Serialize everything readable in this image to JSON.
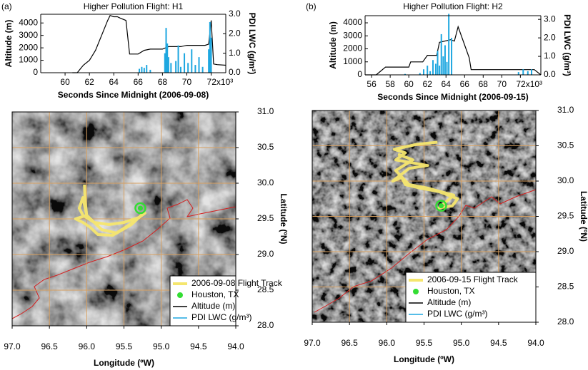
{
  "chart_data": [
    {
      "type": "combo",
      "panel_label": "(a)",
      "title": "Higher Pollution Flight: H1",
      "xlabel": "Seconds Since Midnight (2006-09-08)",
      "ylabel": "Altitude (m)",
      "y2label": "PDI LWC (g/m³)",
      "xlim": [
        58000,
        73200
      ],
      "xticks": [
        {
          "value": 60000,
          "label": "60"
        },
        {
          "value": 62000,
          "label": "62"
        },
        {
          "value": 64000,
          "label": "64"
        },
        {
          "value": 66000,
          "label": "66"
        },
        {
          "value": 68000,
          "label": "68"
        },
        {
          "value": 70000,
          "label": "70"
        },
        {
          "value": 72000,
          "label": "72x10³"
        }
      ],
      "ylim": [
        0,
        4700
      ],
      "yticks": [
        0,
        1000,
        2000,
        3000,
        4000
      ],
      "y2lim": [
        0,
        3.0
      ],
      "y2ticks": [
        {
          "value": 0,
          "label": "0.0"
        },
        {
          "value": 1,
          "label": "1.0"
        },
        {
          "value": 2,
          "label": "2.0"
        },
        {
          "value": 3,
          "label": "3.0"
        }
      ],
      "series": [
        {
          "name": "Altitude (m)",
          "type": "line",
          "color": "#000000",
          "x": [
            60600,
            61000,
            61500,
            62000,
            62500,
            63000,
            63500,
            63700,
            64000,
            64300,
            64500,
            65000,
            65300,
            66000,
            66500,
            67000,
            68000,
            68500,
            69500,
            70000,
            71500,
            71800,
            72000,
            72200,
            72500,
            73200
          ],
          "values": [
            0,
            0,
            600,
            1000,
            1800,
            3000,
            4200,
            4600,
            4500,
            4500,
            4400,
            4200,
            1500,
            1500,
            1800,
            1900,
            1900,
            2100,
            2100,
            2200,
            2200,
            2300,
            4200,
            700,
            650,
            600
          ]
        },
        {
          "name": "PDI LWC (g/m³)",
          "type": "bar",
          "axis": "y2",
          "color": "#1ea7e0",
          "x": [
            61000,
            66100,
            66300,
            66500,
            66700,
            67000,
            68200,
            68300,
            68400,
            68500,
            68700,
            69100,
            69300,
            69500,
            69800,
            70100,
            70400,
            70700,
            71000,
            71300,
            71800,
            71900,
            72000
          ],
          "values": [
            0.02,
            0.2,
            0.3,
            0.25,
            0.4,
            0.15,
            1.0,
            2.3,
            1.5,
            0.8,
            0.5,
            0.6,
            1.4,
            0.3,
            1.0,
            0.5,
            1.2,
            0.4,
            0.8,
            0.3,
            1.2,
            2.6,
            1.8
          ]
        }
      ]
    },
    {
      "type": "combo",
      "panel_label": "(b)",
      "title": "Higher Pollution Flight: H2",
      "xlabel": "Seconds Since Midnight (2006-09-15)",
      "ylabel": "Altitude (m)",
      "y2label": "PDI LWC (g/m³)",
      "xlim": [
        55300,
        74200
      ],
      "xticks": [
        {
          "value": 56000,
          "label": "56"
        },
        {
          "value": 58000,
          "label": "58"
        },
        {
          "value": 60000,
          "label": "60"
        },
        {
          "value": 62000,
          "label": "62"
        },
        {
          "value": 64000,
          "label": "64"
        },
        {
          "value": 66000,
          "label": "66"
        },
        {
          "value": 68000,
          "label": "68"
        },
        {
          "value": 70000,
          "label": "70"
        },
        {
          "value": 72000,
          "label": "72x10³"
        }
      ],
      "ylim": [
        0,
        4550
      ],
      "yticks": [
        0,
        1000,
        2000,
        3000,
        4000
      ],
      "y2lim": [
        0,
        3.2
      ],
      "y2ticks": [
        {
          "value": 0,
          "label": "0.0"
        },
        {
          "value": 1,
          "label": "1.0"
        },
        {
          "value": 2,
          "label": "2.0"
        },
        {
          "value": 3,
          "label": "3.0"
        }
      ],
      "series": [
        {
          "name": "Altitude (m)",
          "type": "line",
          "color": "#000000",
          "x": [
            55300,
            56500,
            57000,
            57500,
            60000,
            60200,
            61500,
            62000,
            63000,
            63300,
            64500,
            64900,
            65300,
            66500,
            66700,
            73500,
            74200
          ],
          "values": [
            0,
            0,
            300,
            600,
            600,
            1000,
            1000,
            1500,
            1500,
            2500,
            2700,
            2600,
            3700,
            1300,
            400,
            400,
            0
          ]
        },
        {
          "name": "PDI LWC (g/m³)",
          "type": "bar",
          "axis": "y2",
          "color": "#1ea7e0",
          "x": [
            59600,
            61200,
            61600,
            62000,
            62300,
            62600,
            62900,
            63100,
            63300,
            63500,
            63700,
            63900,
            64100,
            64300,
            64600,
            71800,
            72300,
            72800,
            73200
          ],
          "values": [
            0.05,
            0.1,
            0.3,
            0.5,
            0.2,
            0.8,
            0.6,
            1.3,
            0.5,
            2.2,
            1.0,
            1.6,
            0.7,
            3.3,
            2.0,
            0.15,
            0.3,
            0.2,
            0.3
          ]
        }
      ]
    },
    {
      "type": "map",
      "xlabel": "Longitude (ºW)",
      "ylabel": "Latitude (ºN)",
      "xlim": [
        97.0,
        94.0
      ],
      "xticks": [
        {
          "value": 97,
          "label": "97.0"
        },
        {
          "value": 96.5,
          "label": "96.5"
        },
        {
          "value": 96,
          "label": "96.0"
        },
        {
          "value": 95.5,
          "label": "95.5"
        },
        {
          "value": 95,
          "label": "95.0"
        },
        {
          "value": 94.5,
          "label": "94.5"
        },
        {
          "value": 94,
          "label": "94.0"
        }
      ],
      "ylim": [
        28.0,
        31.0
      ],
      "yticks": [
        {
          "value": 28,
          "label": "28.0"
        },
        {
          "value": 28.5,
          "label": "28.5"
        },
        {
          "value": 29,
          "label": "29.0"
        },
        {
          "value": 29.5,
          "label": "29.5"
        },
        {
          "value": 30,
          "label": "30.0"
        },
        {
          "value": 30.5,
          "label": "30.5"
        },
        {
          "value": 31,
          "label": "31.0"
        }
      ],
      "grid": true,
      "series": [
        {
          "name": "2006-09-08 Flight Track",
          "type": "line",
          "color": "#f5e66e",
          "x": [
            96.03,
            96.02,
            96.0,
            96.15,
            96.05,
            95.95,
            95.85,
            95.65,
            95.45,
            95.22,
            95.3,
            95.5,
            95.7,
            95.9,
            96.05,
            96.1,
            96.05,
            96.0,
            95.8,
            95.6,
            95.4,
            95.22
          ],
          "values": [
            29.98,
            29.75,
            29.55,
            29.5,
            29.45,
            29.38,
            29.28,
            29.27,
            29.4,
            29.58,
            29.52,
            29.45,
            29.42,
            29.45,
            29.55,
            29.65,
            29.8,
            29.55,
            29.35,
            29.3,
            29.42,
            29.6
          ]
        },
        {
          "name": "Houston, TX",
          "type": "scatter",
          "color": "#33dd33",
          "x": [
            95.28
          ],
          "values": [
            29.65
          ]
        }
      ]
    },
    {
      "type": "map",
      "xlabel": "Longitude (ºW)",
      "ylabel": "Latitude (ºN)",
      "xlim": [
        97.0,
        94.0
      ],
      "xticks": [
        {
          "value": 97,
          "label": "97.0"
        },
        {
          "value": 96.5,
          "label": "96.5"
        },
        {
          "value": 96,
          "label": "96.0"
        },
        {
          "value": 95.5,
          "label": "95.5"
        },
        {
          "value": 95,
          "label": "95.0"
        },
        {
          "value": 94.5,
          "label": "94.5"
        },
        {
          "value": 94,
          "label": "94.0"
        }
      ],
      "ylim": [
        28.0,
        31.0
      ],
      "yticks": [
        {
          "value": 28,
          "label": "28.0"
        },
        {
          "value": 28.5,
          "label": "28.5"
        },
        {
          "value": 29,
          "label": "29.0"
        },
        {
          "value": 29.5,
          "label": "29.5"
        },
        {
          "value": 30,
          "label": "30.0"
        },
        {
          "value": 30.5,
          "label": "30.5"
        },
        {
          "value": 31,
          "label": "31.0"
        }
      ],
      "grid": true,
      "series": [
        {
          "name": "2006-09-15 Flight Track",
          "type": "line",
          "color": "#f5e66e",
          "x": [
            95.32,
            95.6,
            95.9,
            95.75,
            95.88,
            95.45,
            95.7,
            95.92,
            95.8,
            95.75,
            95.55,
            95.3,
            95.05,
            95.12,
            95.3,
            95.1,
            95.45,
            95.7,
            95.88,
            95.65,
            95.85
          ],
          "values": [
            30.55,
            30.52,
            30.45,
            30.4,
            30.3,
            30.22,
            30.18,
            30.0,
            30.05,
            29.95,
            29.9,
            29.85,
            29.75,
            29.65,
            29.62,
            29.8,
            29.9,
            29.95,
            30.15,
            30.3,
            30.38
          ]
        },
        {
          "name": "Houston, TX",
          "type": "scatter",
          "color": "#33dd33",
          "x": [
            95.27
          ],
          "values": [
            29.65
          ]
        }
      ]
    }
  ]
}
